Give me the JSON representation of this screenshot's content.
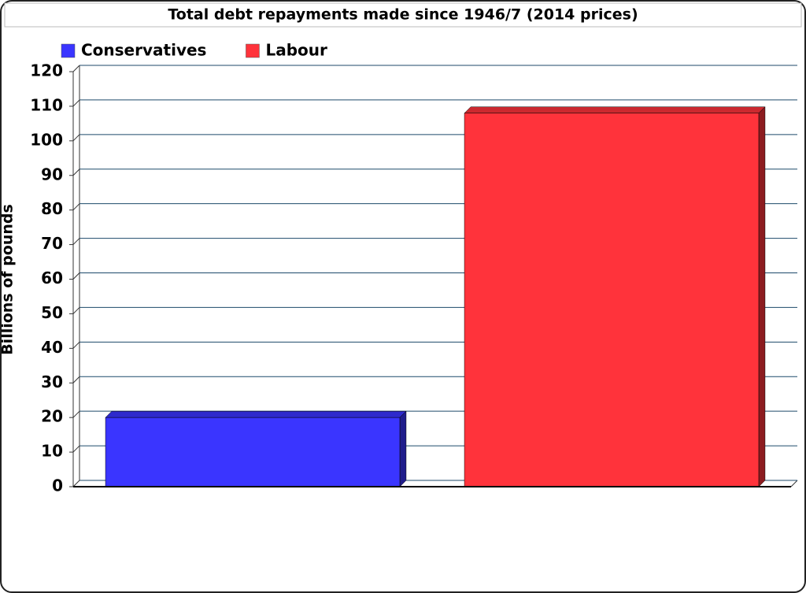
{
  "chart_data": {
    "type": "bar",
    "title": "Total debt repayments made since 1946/7 (2014 prices)",
    "y_label": "Billions of pounds",
    "categories": [
      null
    ],
    "series": [
      {
        "name": "Conservatives",
        "color": "#3a35ff",
        "values": [
          20
        ]
      },
      {
        "name": "Labour",
        "color": "#ff333b",
        "values": [
          108
        ]
      }
    ],
    "ylim": [
      0,
      120
    ],
    "yticks": [
      0,
      10,
      20,
      30,
      40,
      50,
      60,
      70,
      80,
      90,
      100,
      110,
      120
    ],
    "grid": true
  }
}
